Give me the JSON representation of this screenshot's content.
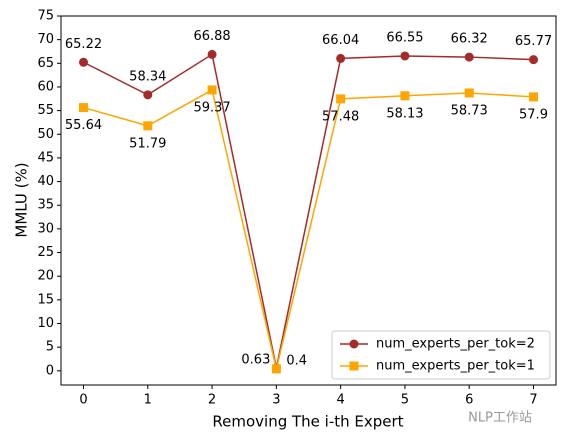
{
  "chart_data": {
    "type": "line",
    "x": [
      0,
      1,
      2,
      3,
      4,
      5,
      6,
      7
    ],
    "xlabel": "Removing The i-th Expert",
    "ylabel": "MMLU (%)",
    "xlim": [
      -0.35,
      7.35
    ],
    "xticks": [
      0,
      1,
      2,
      3,
      4,
      5,
      6,
      7
    ],
    "ylim": [
      -3,
      75
    ],
    "yticks": [
      0,
      5,
      10,
      15,
      20,
      25,
      30,
      35,
      40,
      45,
      50,
      55,
      60,
      65,
      70,
      75
    ],
    "legend": "lower right",
    "series": [
      {
        "name": "num_experts_per_tok=2",
        "color": "#a52a2a",
        "marker": "circle",
        "label_side": "above",
        "values": [
          65.22,
          58.34,
          66.88,
          0.63,
          66.04,
          66.55,
          66.32,
          65.77
        ]
      },
      {
        "name": "num_experts_per_tok=1",
        "color": "#ffa500",
        "marker": "square",
        "label_side": "below",
        "values": [
          55.64,
          51.79,
          59.37,
          0.4,
          57.48,
          58.13,
          58.73,
          57.9
        ]
      }
    ],
    "watermark": "NLP工作站"
  }
}
